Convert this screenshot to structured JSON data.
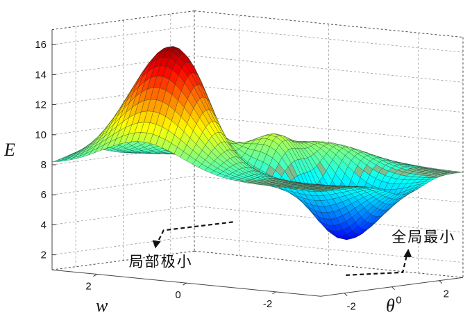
{
  "chart_data": {
    "type": "surface3d",
    "zlabel": "E",
    "xlabel": "w",
    "ylabel": "θ",
    "zticks": [
      2,
      4,
      6,
      8,
      10,
      12,
      14,
      16
    ],
    "xticks": [
      "2",
      "0",
      "-2"
    ],
    "yticks": [
      "-2",
      "0",
      "2"
    ],
    "zlim": [
      1,
      17
    ],
    "wlim": [
      -3,
      3
    ],
    "thetalim": [
      -3,
      3
    ],
    "baseline": 8,
    "peaks": [
      {
        "w": 1.0,
        "theta": -1.5,
        "height": 16.5
      },
      {
        "w": -0.4,
        "theta": 0.2,
        "height": 10.8
      },
      {
        "w": -1.0,
        "theta": 1.2,
        "height": 11.8
      }
    ],
    "minima": [
      {
        "label": "局部极小",
        "w": 0.0,
        "theta": -0.8,
        "value": 4.7
      },
      {
        "label": "全局最小",
        "w": -1.5,
        "theta": 0.6,
        "value": 1.4
      }
    ],
    "colormap": "jet",
    "grid": true
  }
}
